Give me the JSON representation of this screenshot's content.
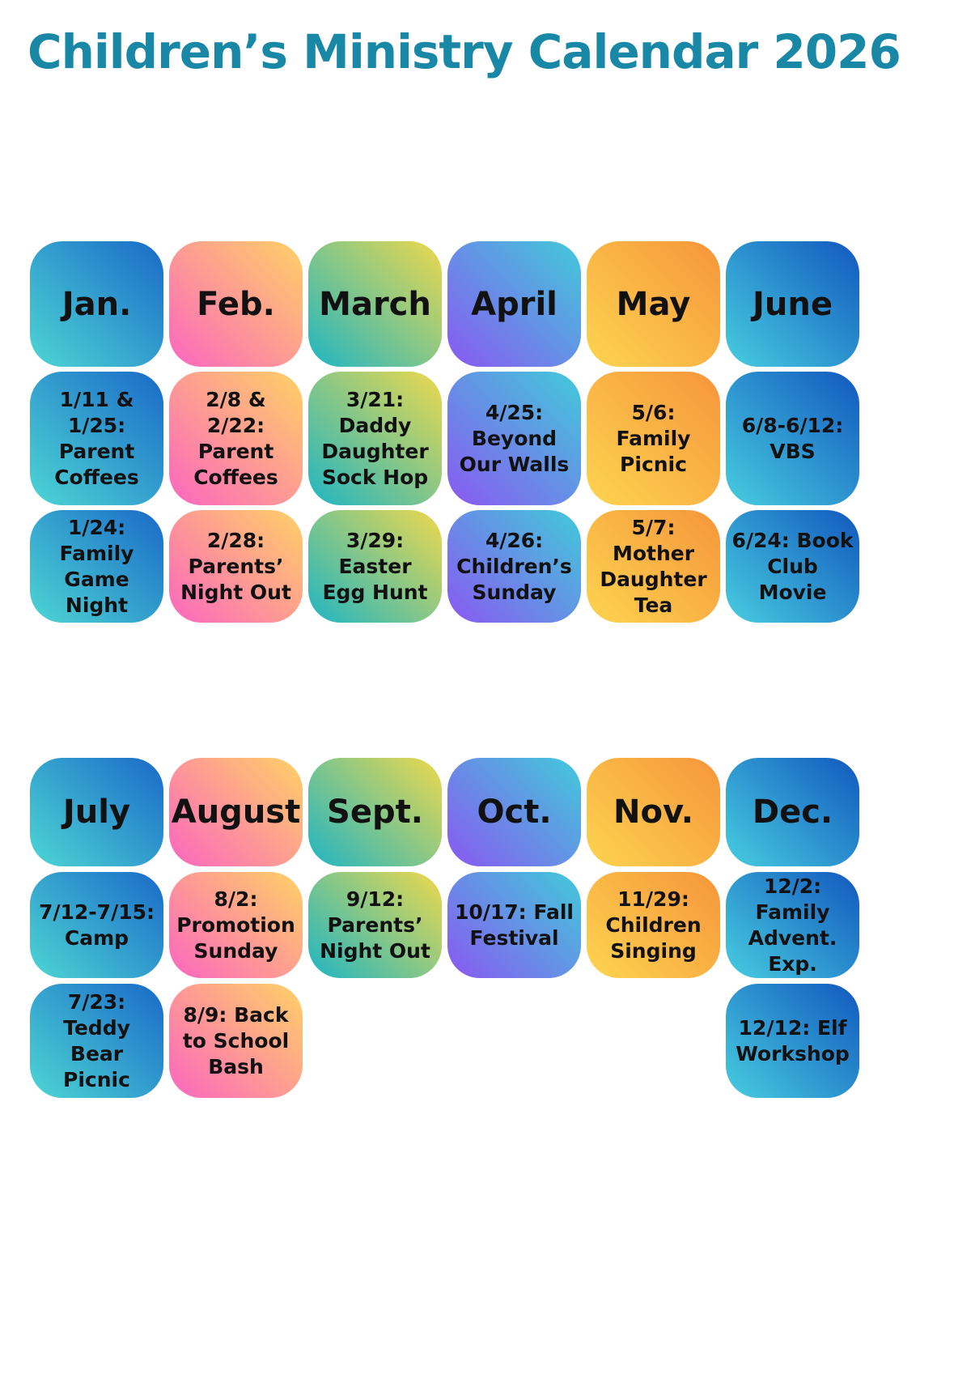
{
  "title": "Children’s Ministry Calendar 2026",
  "colors": {
    "title_text": "#1987A6",
    "tile_text": "#111111",
    "gradients": {
      "teal_blue": {
        "from": "#4DD6D4",
        "to": "#1A6AC8"
      },
      "cyan_blue": {
        "from": "#47CDE0",
        "to": "#1258BE"
      },
      "pink_yellow": {
        "from": "#FC66C0",
        "to": "#FFD166"
      },
      "teal_yellow": {
        "from": "#1FB5C4",
        "to": "#EDD94D"
      },
      "purple_cyan": {
        "from": "#8A58F2",
        "to": "#41CAD9"
      },
      "yellow_orange": {
        "from": "#FDD44F",
        "to": "#F6953B"
      }
    }
  },
  "sections": [
    {
      "months": [
        {
          "name": "Jan.",
          "gradient": "teal_blue",
          "events": [
            "1/11 & 1/25: Parent Coffees",
            "1/24: Family Game Night"
          ]
        },
        {
          "name": "Feb.",
          "gradient": "pink_yellow",
          "events": [
            "2/8 & 2/22: Parent Coffees",
            "2/28: Parents’ Night Out"
          ]
        },
        {
          "name": "March",
          "gradient": "teal_yellow",
          "events": [
            "3/21: Daddy Daughter Sock Hop",
            "3/29: Easter Egg Hunt"
          ]
        },
        {
          "name": "April",
          "gradient": "purple_cyan",
          "events": [
            "4/25: Beyond Our Walls",
            "4/26: Children’s Sunday"
          ]
        },
        {
          "name": "May",
          "gradient": "yellow_orange",
          "events": [
            "5/6: Family Picnic",
            "5/7: Mother Daughter Tea"
          ]
        },
        {
          "name": "June",
          "gradient": "cyan_blue",
          "events": [
            "6/8-6/12: VBS",
            "6/24: Book Club Movie"
          ]
        }
      ]
    },
    {
      "months": [
        {
          "name": "July",
          "gradient": "teal_blue",
          "events": [
            "7/12-7/15: Camp",
            "7/23: Teddy Bear Picnic"
          ]
        },
        {
          "name": "August",
          "gradient": "pink_yellow",
          "events": [
            "8/2: Promotion Sunday",
            "8/9: Back to School Bash"
          ]
        },
        {
          "name": "Sept.",
          "gradient": "teal_yellow",
          "events": [
            "9/12: Parents’ Night Out"
          ]
        },
        {
          "name": "Oct.",
          "gradient": "purple_cyan",
          "events": [
            "10/17: Fall Festival"
          ]
        },
        {
          "name": "Nov.",
          "gradient": "yellow_orange",
          "events": [
            "11/29: Children Singing"
          ]
        },
        {
          "name": "Dec.",
          "gradient": "cyan_blue",
          "events": [
            "12/2: Family Advent. Exp.",
            "12/12: Elf Workshop"
          ]
        }
      ]
    }
  ]
}
